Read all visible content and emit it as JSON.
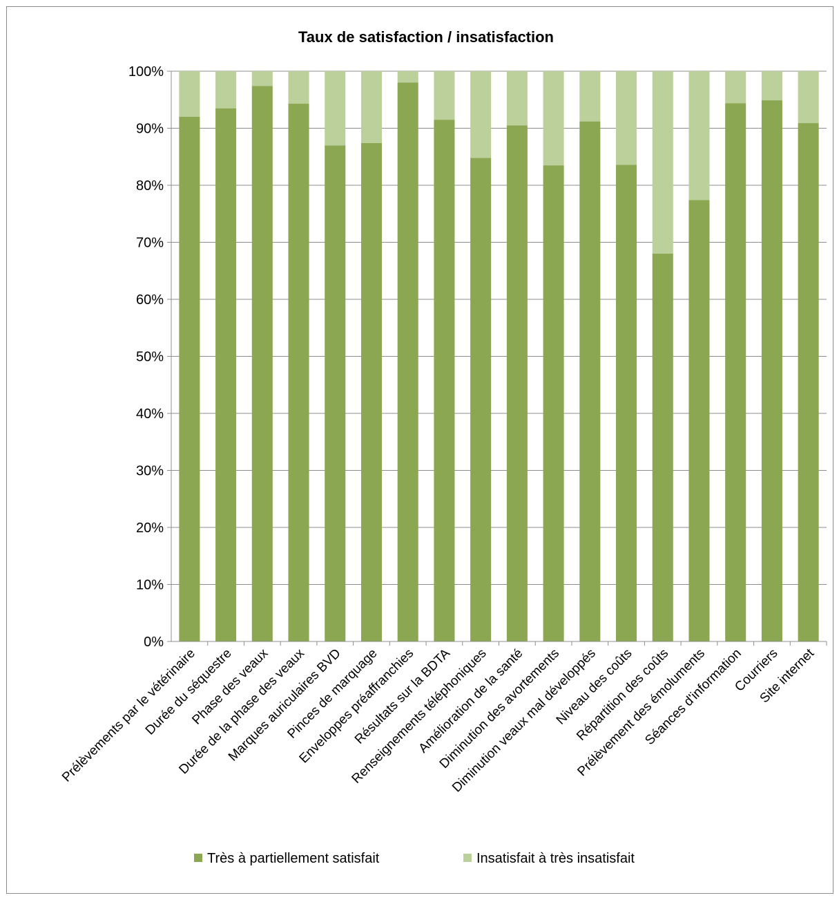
{
  "chart_data": {
    "type": "bar",
    "stacked": true,
    "percent_stacked": true,
    "title": "Taux de satisfaction / insatisfaction",
    "xlabel": "",
    "ylabel": "",
    "ylim": [
      0,
      100
    ],
    "yticks": [
      "0%",
      "10%",
      "20%",
      "30%",
      "40%",
      "50%",
      "60%",
      "70%",
      "80%",
      "90%",
      "100%"
    ],
    "grid": true,
    "legend_position": "bottom",
    "categories": [
      "Prélèvements par le vétérinaire",
      "Durée du séquestre",
      "Phase des veaux",
      "Durée de la phase des veaux",
      "Marques auriculaires BVD",
      "Pinces de marquage",
      "Enveloppes préaffranchies",
      "Résultats sur la BDTA",
      "Renseignements téléphoniques",
      "Amélioration de la santé",
      "Diminution des avortements",
      "Diminution veaux mal développés",
      "Niveau des coûts",
      "Répartition des coûts",
      "Prélèvement des émoluments",
      "Séances d'information",
      "Courriers",
      "Site internet"
    ],
    "series": [
      {
        "name": "Très à partiellement satisfait",
        "color": "#8ba752",
        "values": [
          92,
          93.5,
          97.4,
          94.3,
          87,
          87.4,
          98,
          91.5,
          84.8,
          90.5,
          83.5,
          91.2,
          83.6,
          68,
          77.4,
          94.4,
          94.9,
          90.9
        ]
      },
      {
        "name": "Insatisfait à très insatisfait",
        "color": "#bbd09a",
        "values": [
          8,
          6.5,
          2.6,
          5.7,
          13,
          12.6,
          2,
          8.5,
          15.2,
          9.5,
          16.5,
          8.8,
          16.4,
          32,
          22.6,
          5.6,
          5.1,
          9.1
        ]
      }
    ]
  }
}
